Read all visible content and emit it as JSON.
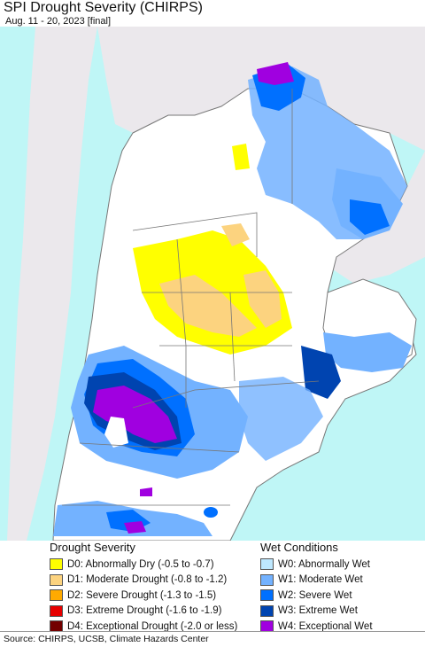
{
  "header": {
    "title": "SPI Drought Severity (CHIRPS)",
    "subtitle": "Aug. 11 - 20, 2023 [final]"
  },
  "colors": {
    "ocean": "#bff6f6",
    "land_outside": "#ebe8ec",
    "land_normal": "#ffffff",
    "border": "#777777"
  },
  "legend": {
    "drought": {
      "heading": "Drought Severity",
      "items": [
        {
          "label": "D0: Abnormally Dry (-0.5 to -0.7)",
          "color": "#ffff00"
        },
        {
          "label": "D1: Moderate Drought (-0.8 to -1.2)",
          "color": "#fcd37f"
        },
        {
          "label": "D2: Severe Drought (-1.3 to -1.5)",
          "color": "#ffaa00"
        },
        {
          "label": "D3: Extreme Drought (-1.6 to -1.9)",
          "color": "#e60000"
        },
        {
          "label": "D4: Exceptional Drought (-2.0 or less)",
          "color": "#730000"
        }
      ]
    },
    "wet": {
      "heading": "Wet Conditions",
      "items": [
        {
          "label": "W0: Abnormally Wet",
          "color": "#bee8ff"
        },
        {
          "label": "W1: Moderate Wet",
          "color": "#73b2ff"
        },
        {
          "label": "W2: Severe Wet",
          "color": "#0070ff"
        },
        {
          "label": "W3: Extreme Wet",
          "color": "#0044b0"
        },
        {
          "label": "W4: Exceptional Wet",
          "color": "#a000e0"
        }
      ]
    }
  },
  "footer": {
    "source": "Source: CHIRPS, UCSB, Climate Hazards Center"
  }
}
